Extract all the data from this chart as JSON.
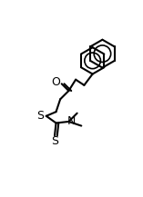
{
  "bg_color": "#ffffff",
  "line_color": "#000000",
  "line_width": 1.5,
  "font_size": 9,
  "atoms": {
    "O_label": "O",
    "S1_label": "S",
    "S2_label": "S",
    "N_label": "N"
  }
}
